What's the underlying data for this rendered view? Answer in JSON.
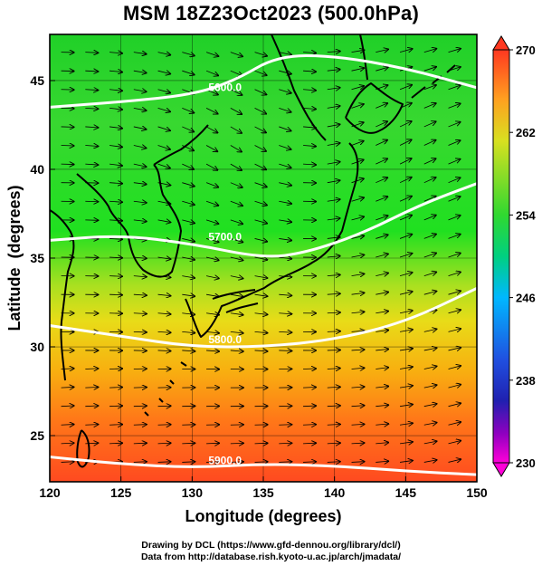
{
  "title": "MSM 18Z23Oct2023 (500.0hPa)",
  "credits": {
    "line1": "Drawing by DCL (https://www.gfd-dennou.org/library/dcl/)",
    "line2": "Data from http://database.rish.kyoto-u.ac.jp/arch/jmadata/"
  },
  "axes": {
    "x": {
      "label": "Longitude (degrees)",
      "range": [
        120,
        150
      ],
      "ticks": [
        120,
        125,
        130,
        135,
        140,
        145,
        150
      ]
    },
    "y": {
      "label": "Latitude  (degrees)",
      "range": [
        22.4,
        47.6
      ],
      "ticks": [
        25,
        30,
        35,
        40,
        45
      ]
    }
  },
  "colorbar": {
    "range": [
      230,
      270
    ],
    "ticks": [
      270,
      262,
      254,
      246,
      238,
      230
    ],
    "colors": {
      "230": "#ff00d8",
      "238": "#2030c8",
      "246": "#00b4ff",
      "254": "#00d840",
      "262": "#b4e020",
      "270": "#ff4020"
    }
  },
  "contours": [
    {
      "label": "5900.0",
      "points": [
        [
          120,
          23.8
        ],
        [
          125,
          23.4
        ],
        [
          130,
          23.2
        ],
        [
          135,
          23.4
        ],
        [
          140,
          23.3
        ],
        [
          145,
          23.0
        ],
        [
          150,
          22.8
        ]
      ]
    },
    {
      "label": "5800.0",
      "points": [
        [
          120,
          31.2
        ],
        [
          125,
          30.6
        ],
        [
          130,
          30.0
        ],
        [
          135,
          30.0
        ],
        [
          140,
          30.4
        ],
        [
          145,
          31.4
        ],
        [
          150,
          33.3
        ]
      ]
    },
    {
      "label": "5700.0",
      "points": [
        [
          120,
          36.0
        ],
        [
          125,
          36.3
        ],
        [
          130,
          35.8
        ],
        [
          135,
          35.0
        ],
        [
          138,
          35.3
        ],
        [
          142,
          36.4
        ],
        [
          146,
          38.0
        ],
        [
          150,
          39.2
        ]
      ]
    },
    {
      "label": "5600.0",
      "points": [
        [
          120,
          43.5
        ],
        [
          125,
          43.8
        ],
        [
          130,
          44.2
        ],
        [
          133,
          45.0
        ],
        [
          136,
          46.4
        ],
        [
          140,
          46.4
        ],
        [
          145,
          45.7
        ],
        [
          150,
          44.6
        ]
      ]
    }
  ]
}
